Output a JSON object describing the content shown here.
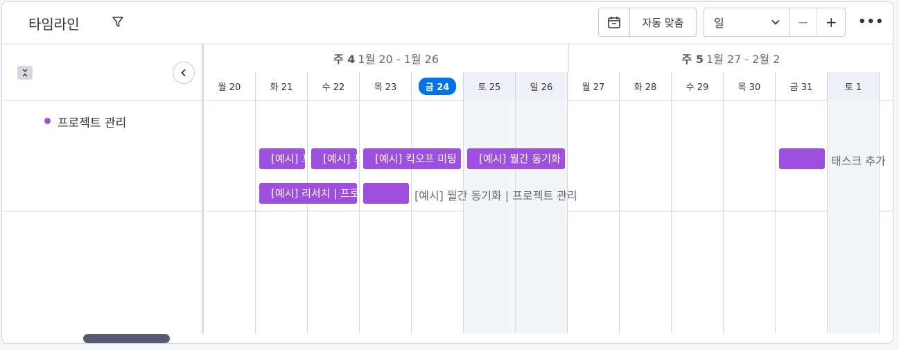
{
  "header": {
    "title": "타임라인",
    "auto_fit_label": "자동 맞춤",
    "view_selected": "일",
    "zoom_out": "−",
    "zoom_in": "+",
    "more": "•••"
  },
  "weeks": [
    {
      "label": "주 4",
      "range": "1월 20 - 1월 26"
    },
    {
      "label": "주 5",
      "range": "1월 27 - 2월 2"
    }
  ],
  "days": [
    "월 20",
    "화 21",
    "수 22",
    "목 23",
    "금 24",
    "토 25",
    "일 26",
    "월 27",
    "화 28",
    "수 29",
    "목 30",
    "금 31",
    "토 1"
  ],
  "today": "금 24",
  "group": {
    "name": "프로젝트 관리",
    "color": "#9d50dd"
  },
  "tasks": {
    "t1": "[예시] 프로젝트 관리",
    "t2": "[예시] 프로젝트 관리",
    "t3": "[예시] 킥오프 미팅",
    "t4": "[예시] 월간 동기화",
    "t5": "[예시] 리서치 | 프로젝트 관리",
    "t6_external": "[예시] 월간 동기화 | 프로젝트 관리",
    "t7_external": "태스크 추가"
  },
  "colors": {
    "accent": "#0073ea",
    "task": "#9d50dd"
  }
}
